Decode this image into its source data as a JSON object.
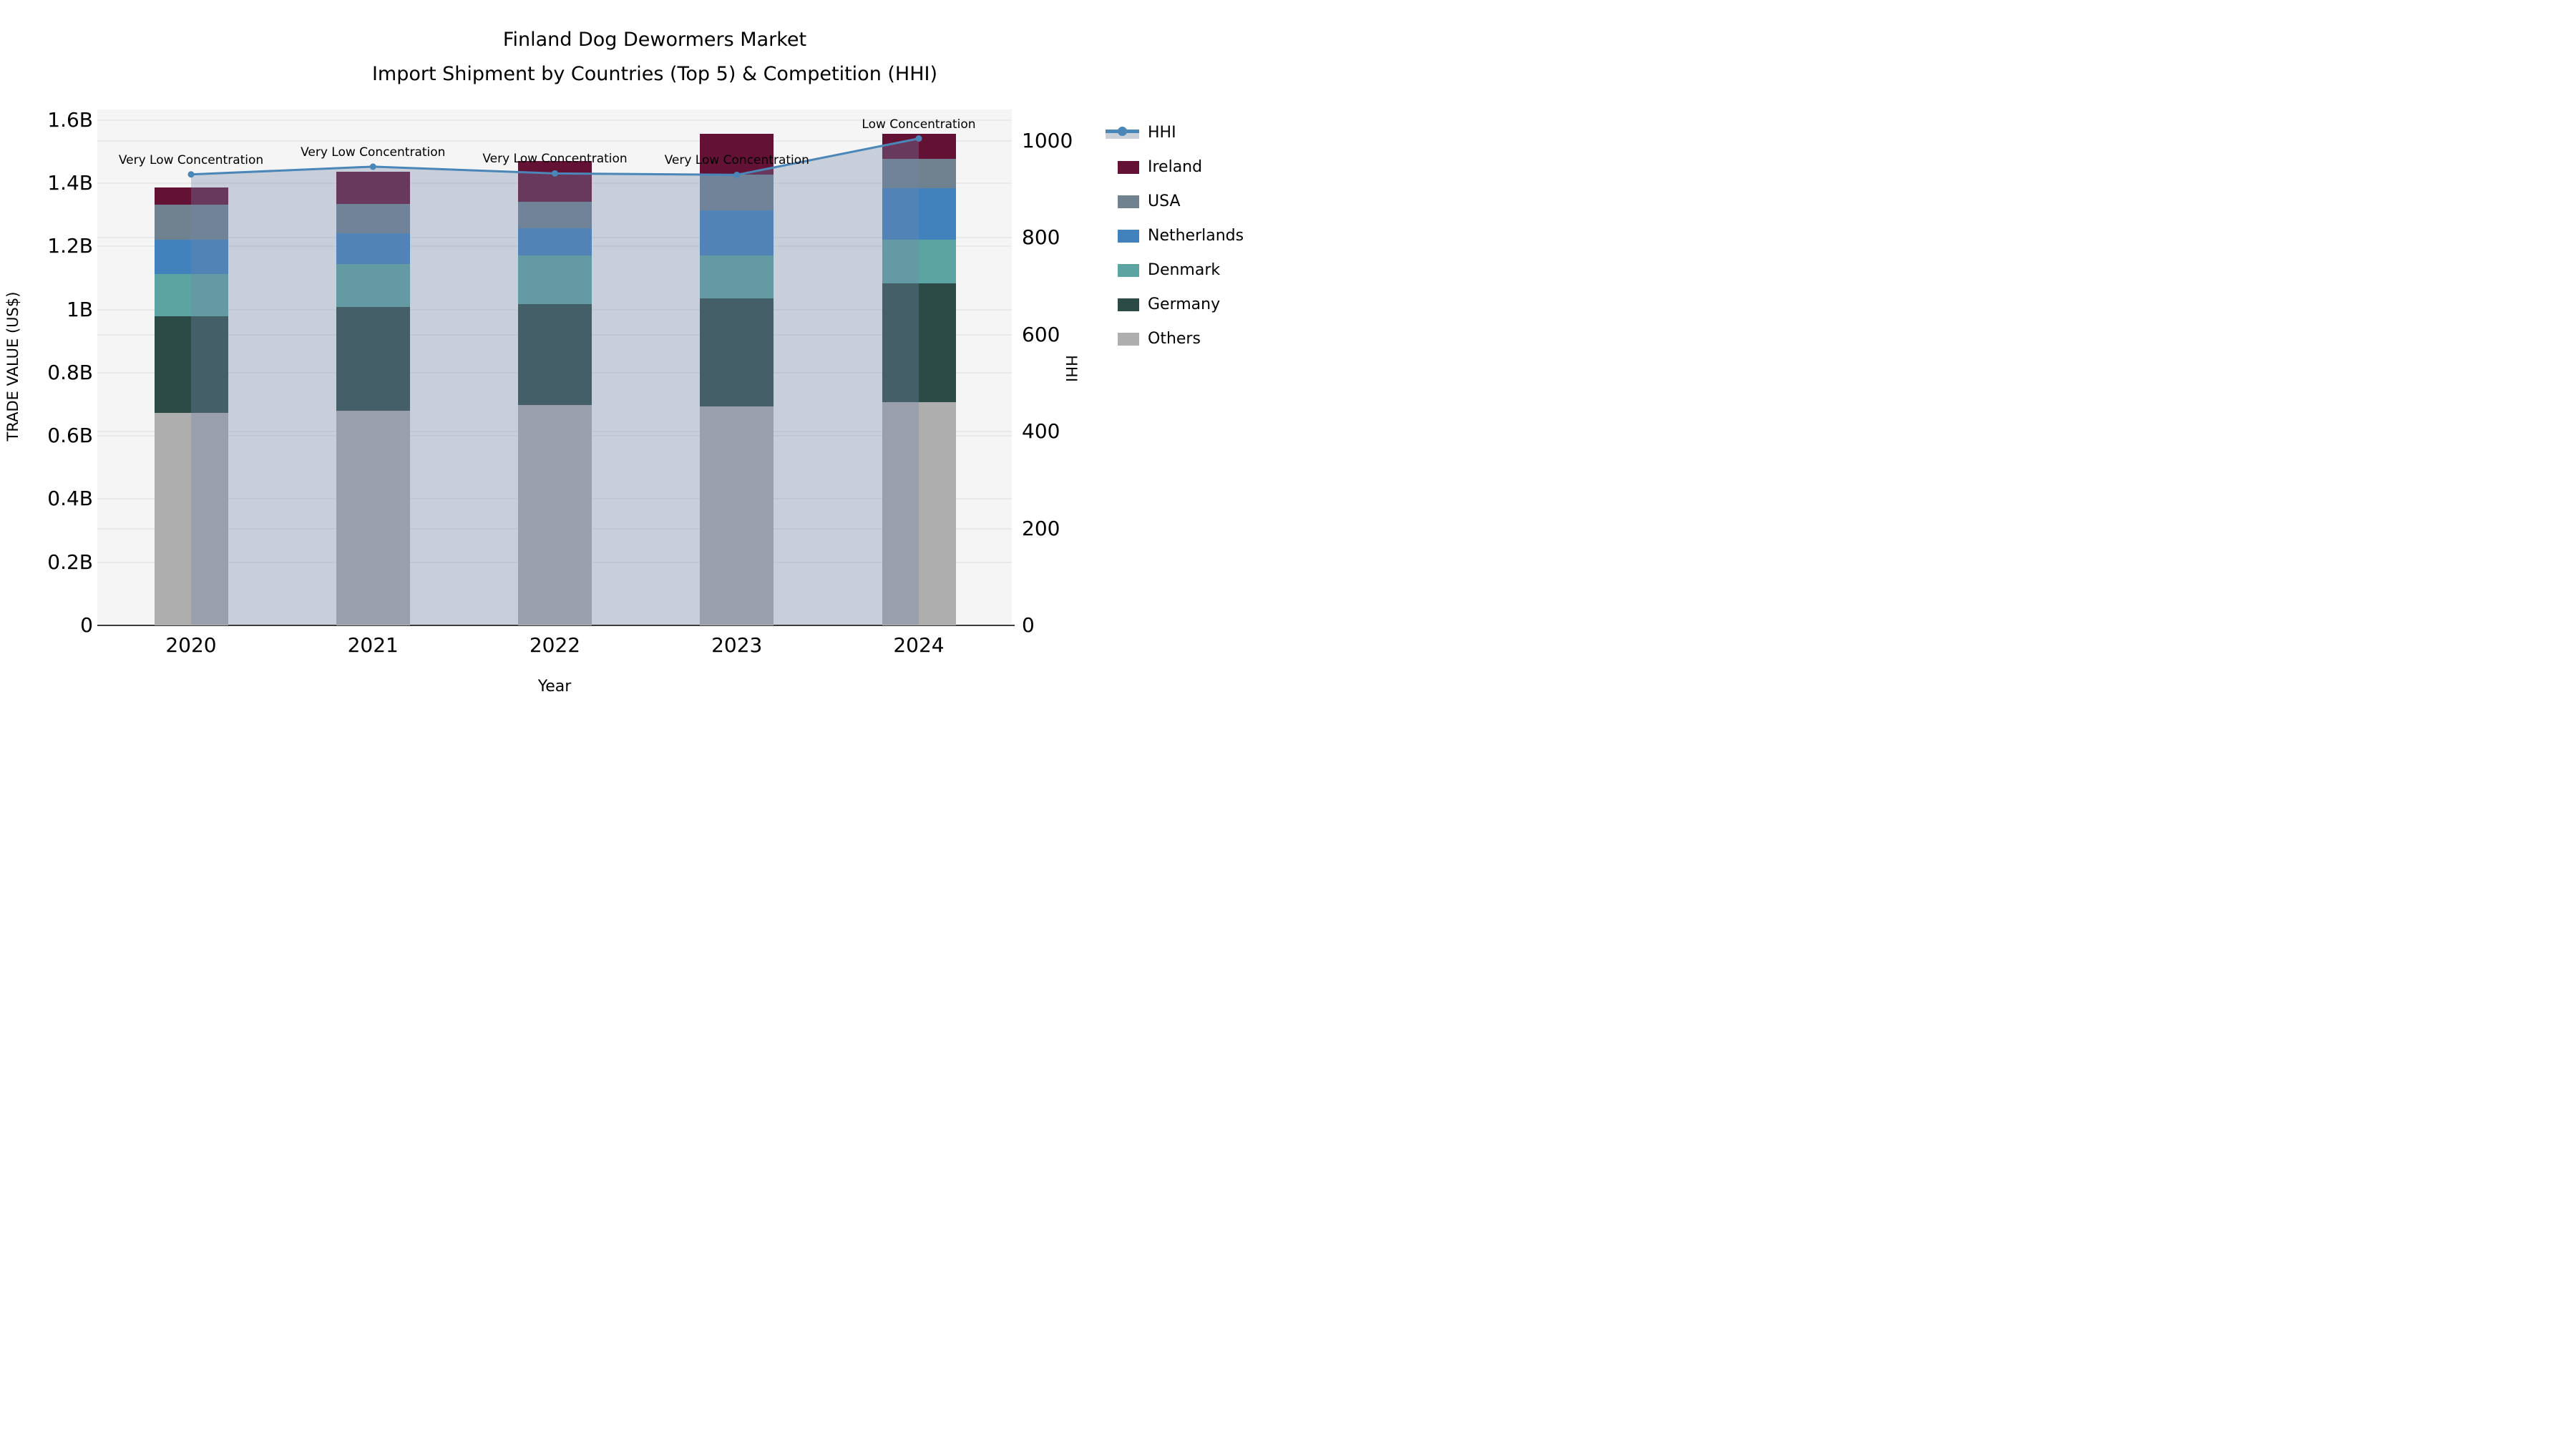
{
  "title": {
    "line1": "Finland Dog Dewormers Market",
    "line2": "Import Shipment by Countries (Top 5) & Competition (HHI)"
  },
  "axes": {
    "left": {
      "title": "TRADE VALUE (US$)",
      "ticks": [
        "0",
        "0.2B",
        "0.4B",
        "0.6B",
        "0.8B",
        "1B",
        "1.2B",
        "1.4B",
        "1.6B"
      ]
    },
    "right": {
      "title": "HHI",
      "ticks": [
        "0",
        "200",
        "400",
        "600",
        "800",
        "1000"
      ]
    },
    "x": {
      "title": "Year",
      "ticks": [
        "2020",
        "2021",
        "2022",
        "2023",
        "2024"
      ]
    }
  },
  "legend": {
    "items": [
      {
        "label": "HHI",
        "type": "line",
        "color": "#4a86b8"
      },
      {
        "label": "Ireland",
        "type": "patch",
        "color": "#631236"
      },
      {
        "label": "USA",
        "type": "patch",
        "color": "#70818f"
      },
      {
        "label": "Netherlands",
        "type": "patch",
        "color": "#4282bc"
      },
      {
        "label": "Denmark",
        "type": "patch",
        "color": "#5ba4a2"
      },
      {
        "label": "Germany",
        "type": "patch",
        "color": "#2d4b46"
      },
      {
        "label": "Others",
        "type": "patch",
        "color": "#aeaeae"
      }
    ]
  },
  "annotations": [
    {
      "year": "2020",
      "text": "Very Low Concentration"
    },
    {
      "year": "2021",
      "text": "Very Low Concentration"
    },
    {
      "year": "2022",
      "text": "Very Low Concentration"
    },
    {
      "year": "2023",
      "text": "Very Low Concentration"
    },
    {
      "year": "2024",
      "text": "Low Concentration"
    }
  ],
  "colors": {
    "plot_background": "#f5f5f5",
    "figure_background": "#ffffff",
    "gridline": "#e9e9e9",
    "axis_line": "#3c3c3c",
    "hhi_line": "#4a86b8",
    "hhi_area_fill": "rgba(114,135,170,0.34)"
  },
  "chart_data": {
    "type": "bar",
    "subtype": "stacked-bars-with-secondary-axis-line",
    "title": "Finland Dog Dewormers Market — Import Shipment by Countries (Top 5) & Competition (HHI)",
    "categories": [
      "2020",
      "2021",
      "2022",
      "2023",
      "2024"
    ],
    "unit": "billions US$",
    "series": [
      {
        "name": "Others",
        "color": "#aeaeae",
        "values": [
          0.673,
          0.679,
          0.698,
          0.692,
          0.706
        ]
      },
      {
        "name": "Germany",
        "color": "#2d4b46",
        "values": [
          0.305,
          0.329,
          0.319,
          0.342,
          0.377
        ]
      },
      {
        "name": "Denmark",
        "color": "#5ba4a2",
        "values": [
          0.134,
          0.136,
          0.155,
          0.137,
          0.138
        ]
      },
      {
        "name": "Netherlands",
        "color": "#4282bc",
        "values": [
          0.108,
          0.098,
          0.085,
          0.143,
          0.163
        ]
      },
      {
        "name": "USA",
        "color": "#70818f",
        "values": [
          0.112,
          0.091,
          0.083,
          0.112,
          0.092
        ]
      },
      {
        "name": "Ireland",
        "color": "#631236",
        "values": [
          0.055,
          0.104,
          0.131,
          0.13,
          0.08
        ]
      }
    ],
    "totals": [
      1.387,
      1.437,
      1.471,
      1.556,
      1.556
    ],
    "line": {
      "name": "HHI",
      "axis": "right",
      "color": "#4a86b8",
      "values": [
        931,
        947,
        933,
        930,
        1005
      ],
      "area_fill": true,
      "point_labels": [
        "Very Low Concentration",
        "Very Low Concentration",
        "Very Low Concentration",
        "Very Low Concentration",
        "Low Concentration"
      ]
    },
    "xlabel": "Year",
    "ylabel": "TRADE VALUE (US$)",
    "y2label": "HHI",
    "ylim": [
      0,
      1.6
    ],
    "y2lim": [
      0,
      1065
    ],
    "grid": true,
    "legend_position": "right-outside"
  }
}
